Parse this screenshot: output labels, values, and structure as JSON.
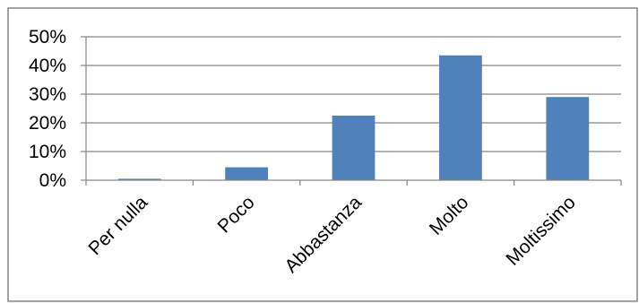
{
  "chart_data": {
    "type": "bar",
    "title": "",
    "xlabel": "",
    "ylabel": "",
    "categories": [
      "Per nulla",
      "Poco",
      "Abbastanza",
      "Molto",
      "Moltissimo"
    ],
    "series": [
      {
        "values": [
          0.5,
          4.5,
          22.5,
          43.5,
          29.0
        ]
      }
    ],
    "ylim": [
      0,
      50
    ],
    "yticks": [
      0,
      10,
      20,
      30,
      40,
      50
    ],
    "ytick_labels": [
      "0%",
      "10%",
      "20%",
      "30%",
      "40%",
      "50%"
    ],
    "y_unit": "%",
    "grid": true,
    "legend": "none",
    "colors": {
      "bar": "#4f81bd",
      "grid": "#868686",
      "axis": "#868686",
      "frame": "#868686"
    }
  }
}
